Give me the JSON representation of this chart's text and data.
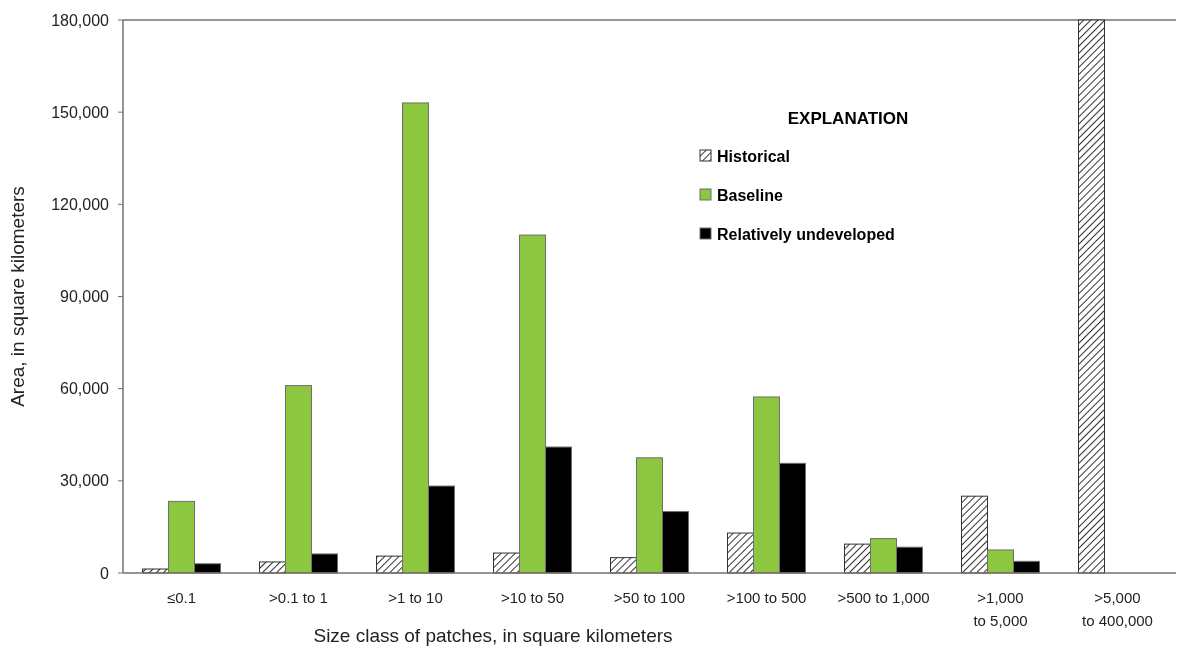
{
  "chart_data": {
    "type": "bar",
    "xlabel": "Size class of patches, in square kilometers",
    "ylabel": "Area, in square kilometers",
    "legend_title": "EXPLANATION",
    "categories": [
      "≤0.1",
      ">0.1 to 1",
      ">1 to 10",
      ">10 to 50",
      ">50 to 100",
      ">100 to 500",
      ">500 to 1,000",
      ">1,000 to 5,000",
      ">5,000 to 400,000"
    ],
    "series": [
      {
        "name": "Historical",
        "color": "#333333",
        "values": [
          1300,
          3600,
          5500,
          6500,
          5000,
          13000,
          9400,
          25000,
          180000
        ]
      },
      {
        "name": "Baseline",
        "color": "#8dc63f",
        "values": [
          23300,
          61000,
          153000,
          110000,
          37500,
          57300,
          11200,
          7500,
          null
        ]
      },
      {
        "name": "Relatively undeveloped",
        "color": "#000000",
        "values": [
          3000,
          6200,
          28300,
          41000,
          20000,
          35700,
          8400,
          3800,
          null
        ]
      }
    ],
    "ylim": [
      0,
      180000
    ],
    "yticks": [
      {
        "value": 0,
        "label": "0"
      },
      {
        "value": 30000,
        "label": "30,000"
      },
      {
        "value": 60000,
        "label": "60,000"
      },
      {
        "value": 90000,
        "label": "90,000"
      },
      {
        "value": 120000,
        "label": "120,000"
      },
      {
        "value": 150000,
        "label": "150,000"
      },
      {
        "value": 180000,
        "label": "180,000"
      }
    ],
    "legend": "top right"
  }
}
